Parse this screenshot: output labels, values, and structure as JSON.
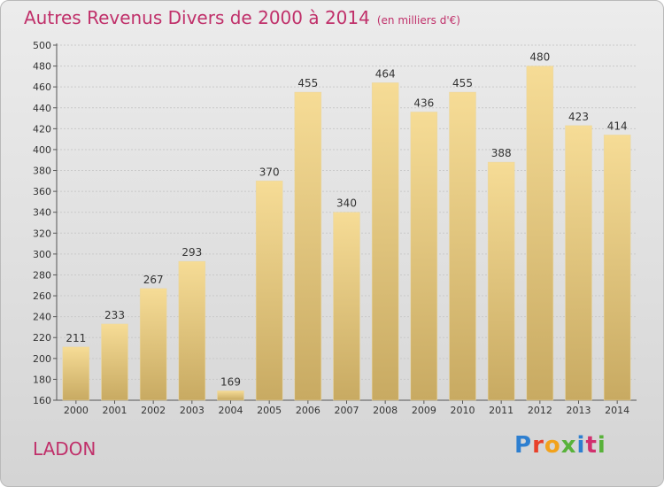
{
  "title": "Autres Revenus Divers de 2000 à 2014",
  "unit_note": "(en milliers d'€)",
  "region": "LADON",
  "logo": {
    "letters": [
      "P",
      "r",
      "o",
      "x",
      "i",
      "t",
      "i"
    ]
  },
  "chart_data": {
    "type": "bar",
    "categories": [
      "2000",
      "2001",
      "2002",
      "2003",
      "2004",
      "2005",
      "2006",
      "2007",
      "2008",
      "2009",
      "2010",
      "2011",
      "2012",
      "2013",
      "2014"
    ],
    "values": [
      211,
      233,
      267,
      293,
      169,
      370,
      455,
      340,
      464,
      436,
      455,
      388,
      480,
      423,
      414
    ],
    "ylim": [
      160,
      500
    ],
    "yticks": [
      160,
      180,
      200,
      220,
      240,
      260,
      280,
      300,
      320,
      340,
      360,
      380,
      400,
      420,
      440,
      460,
      480,
      500
    ],
    "grid": true,
    "colors": {
      "bar_top": "#f6dc96",
      "bar_bottom": "#c8aa62"
    }
  }
}
